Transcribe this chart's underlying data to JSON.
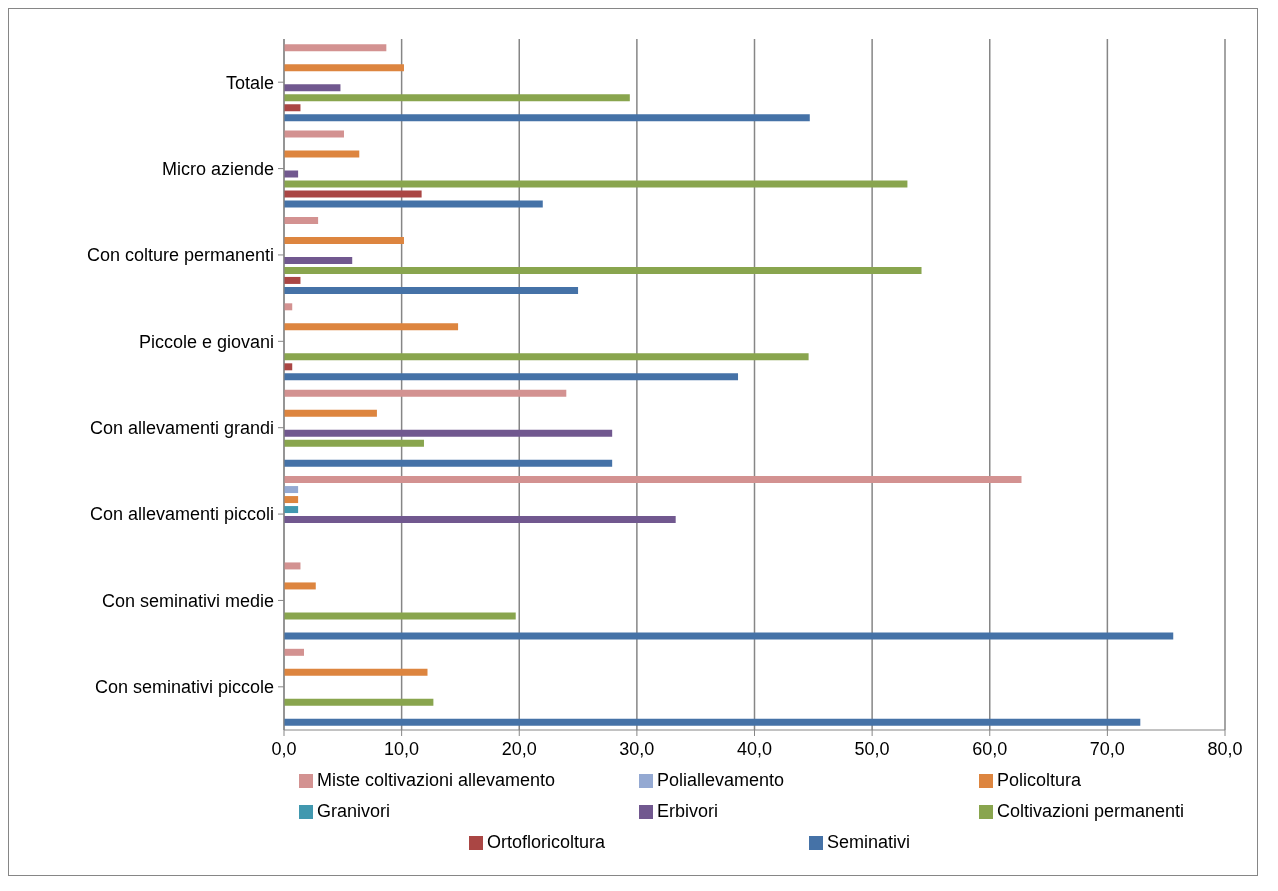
{
  "chart_data": {
    "type": "bar",
    "orientation": "horizontal",
    "categories": [
      "Totale",
      "Micro aziende",
      "Con colture permanenti",
      "Piccole e giovani",
      "Con allevamenti  grandi",
      "Con allevamenti  piccoli",
      "Con seminativi  medie",
      "Con seminativi  piccole"
    ],
    "series": [
      {
        "name": "Miste coltivazioni allevamento",
        "color": "#d39291",
        "values": [
          8.7,
          5.1,
          2.9,
          0.7,
          24.0,
          62.7,
          1.4,
          1.7
        ]
      },
      {
        "name": "Poliallevamento",
        "color": "#94a9d2",
        "values": [
          null,
          null,
          null,
          null,
          null,
          1.2,
          null,
          null
        ]
      },
      {
        "name": "Policoltura",
        "color": "#dd853f",
        "values": [
          10.2,
          6.4,
          10.2,
          14.8,
          7.9,
          1.2,
          2.7,
          12.2
        ]
      },
      {
        "name": "Granivori",
        "color": "#4198af",
        "values": [
          null,
          null,
          null,
          null,
          null,
          1.2,
          null,
          null
        ]
      },
      {
        "name": "Erbivori",
        "color": "#71588f",
        "values": [
          4.8,
          1.2,
          5.8,
          null,
          27.9,
          33.3,
          null,
          null
        ]
      },
      {
        "name": "Coltivazioni permanenti",
        "color": "#89a54e",
        "values": [
          29.4,
          53.0,
          54.2,
          44.6,
          11.9,
          null,
          19.7,
          12.7
        ]
      },
      {
        "name": "Ortofloricoltura",
        "color": "#aa4644",
        "values": [
          1.4,
          11.7,
          1.4,
          0.7,
          null,
          null,
          null,
          null
        ]
      },
      {
        "name": "Seminativi",
        "color": "#4572a7",
        "values": [
          44.7,
          22.0,
          25.0,
          38.6,
          27.9,
          null,
          75.6,
          72.8
        ]
      }
    ],
    "xlim": [
      0,
      80
    ],
    "xticks": [
      {
        "value": 0,
        "label": "0,0"
      },
      {
        "value": 10,
        "label": "10,0"
      },
      {
        "value": 20,
        "label": "20,0"
      },
      {
        "value": 30,
        "label": "30,0"
      },
      {
        "value": 40,
        "label": "40,0"
      },
      {
        "value": 50,
        "label": "50,0"
      },
      {
        "value": 60,
        "label": "60,0"
      },
      {
        "value": 70,
        "label": "70,0"
      },
      {
        "value": 80,
        "label": "80,0"
      }
    ],
    "grid": "x",
    "legend": "bottom"
  }
}
